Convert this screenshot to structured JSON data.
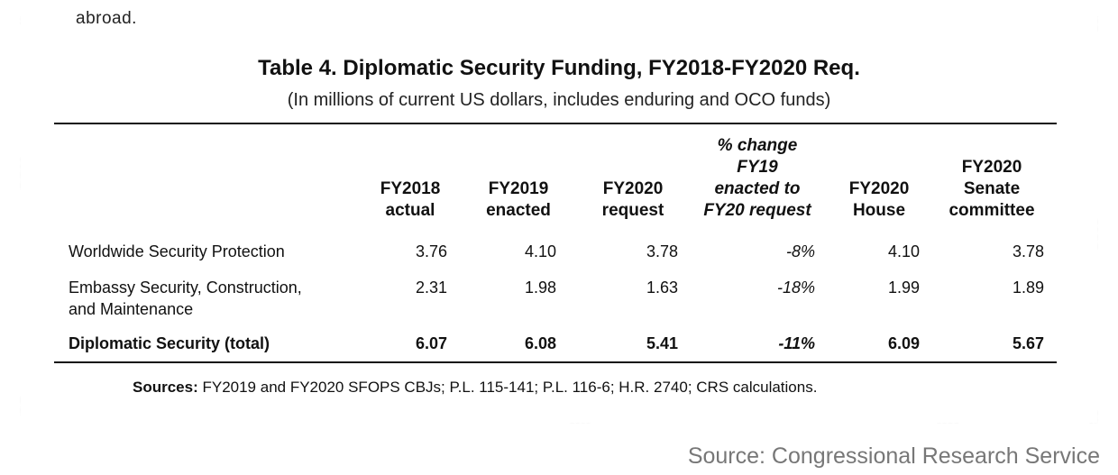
{
  "partial_text": "abroad.",
  "table": {
    "title": "Table 4. Diplomatic Security Funding, FY2018-FY2020 Req.",
    "subtitle": "(In millions of current US dollars, includes enduring and OCO funds)",
    "headers": [
      [
        "FY2018",
        "actual"
      ],
      [
        "FY2019",
        "enacted"
      ],
      [
        "FY2020",
        "request"
      ],
      [
        "% change",
        "FY19",
        "enacted to",
        "FY20 request"
      ],
      [
        "FY2020",
        "House"
      ],
      [
        "FY2020",
        "Senate",
        "committee"
      ]
    ],
    "rows": [
      {
        "label": [
          "Worldwide Security Protection"
        ],
        "values": [
          "3.76",
          "4.10",
          "3.78",
          "-8%",
          "4.10",
          "3.78"
        ]
      },
      {
        "label": [
          "Embassy Security, Construction,",
          "and Maintenance"
        ],
        "values": [
          "2.31",
          "1.98",
          "1.63",
          "-18%",
          "1.99",
          "1.89"
        ]
      },
      {
        "label": [
          "Diplomatic Security (total)"
        ],
        "values": [
          "6.07",
          "6.08",
          "5.41",
          "-11%",
          "6.09",
          "5.67"
        ]
      }
    ]
  },
  "sources": {
    "label": "Sources:",
    "text": " FY2019 and FY2020 SFOPS CBJs; P.L. 115-141; P.L. 116-6; H.R. 2740; CRS calculations."
  },
  "credit": "Source: Congressional Research Service"
}
